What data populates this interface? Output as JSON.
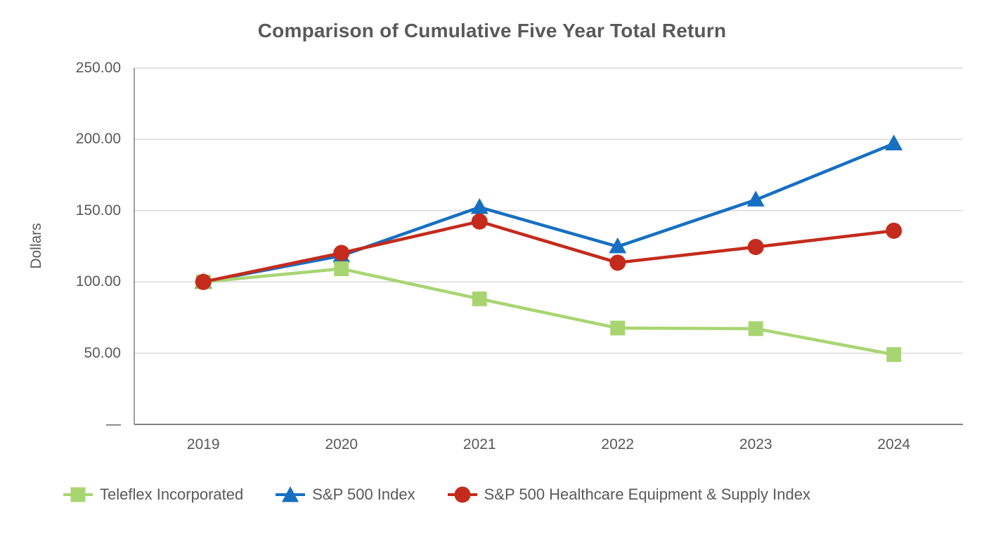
{
  "style": {
    "background": "#FFFFFF",
    "text_color": "#595959",
    "gridline_color": "#D9D9D9",
    "axis_color": "#7F7F7F"
  },
  "chart_data": {
    "type": "line",
    "title": "Comparison of Cumulative Five Year Total Return",
    "ylabel": "Dollars",
    "xlabel": "",
    "categories": [
      "2019",
      "2020",
      "2021",
      "2022",
      "2023",
      "2024"
    ],
    "series": [
      {
        "name": "Teleflex Incorporated",
        "color": "#A8D572",
        "marker": "square",
        "values": [
          100.0,
          109.2,
          88.1,
          67.6,
          67.2,
          49.0
        ]
      },
      {
        "name": "S&P 500 Index",
        "color": "#176FC1",
        "marker": "triangle",
        "values": [
          100.0,
          118.4,
          152.39,
          124.79,
          157.59,
          197.02
        ]
      },
      {
        "name": "S&P 500 Healthcare Equipment & Supply Index",
        "color": "#C42B1C",
        "marker": "circle",
        "values": [
          100.0,
          120.3,
          142.4,
          113.5,
          124.5,
          135.9
        ]
      }
    ],
    "y_ticks": [
      {
        "value": 250,
        "label": "250.00"
      },
      {
        "value": 200,
        "label": "200.00"
      },
      {
        "value": 150,
        "label": "150.00"
      },
      {
        "value": 100,
        "label": "100.00"
      },
      {
        "value": 50,
        "label": "50.00"
      },
      {
        "value": 0,
        "label": "—"
      }
    ],
    "ylim": [
      0,
      250
    ],
    "grid": true,
    "legend_position": "bottom",
    "draw_order": [
      1,
      0,
      2
    ]
  }
}
